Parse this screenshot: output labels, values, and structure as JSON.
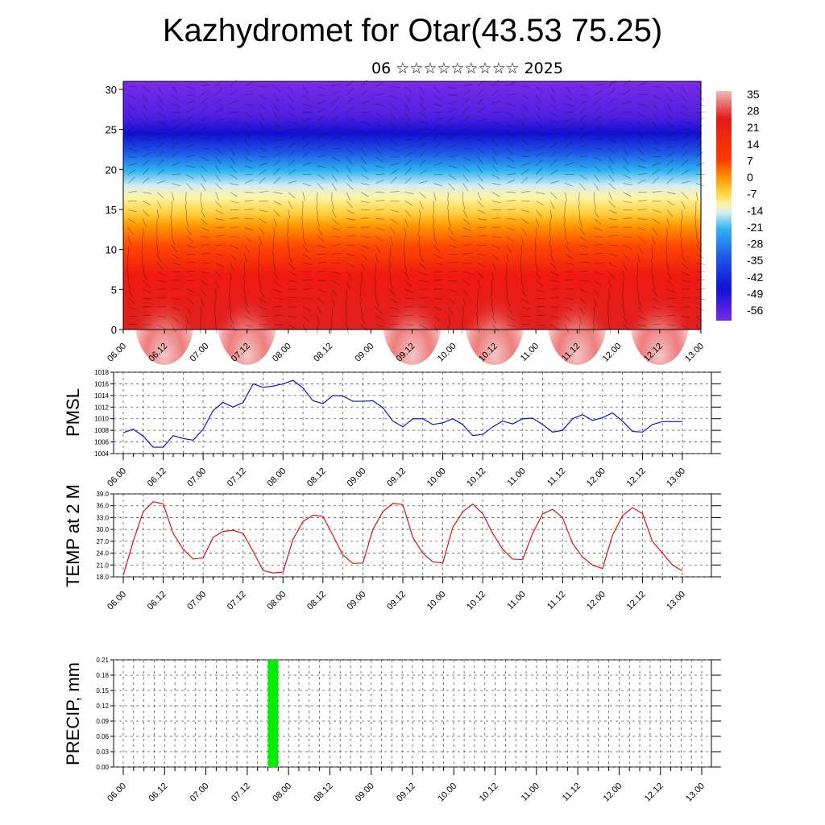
{
  "header": {
    "title": "Kazhydromet for Otar(43.53 75.25)",
    "subtitle": "06 ☆☆☆☆☆☆☆☆☆ 2025"
  },
  "time_axis": {
    "tick_labels": [
      "06.00",
      "06.12",
      "07.00",
      "07.12",
      "08.00",
      "08.12",
      "09.00",
      "09.12",
      "10.00",
      "10.12",
      "11.00",
      "11.12",
      "12.00",
      "12.12",
      "13.00"
    ]
  },
  "chart_data": [
    {
      "type": "heatmap",
      "description_key": "temperature-wind-cross-section",
      "y_ticks": [
        0,
        5,
        10,
        15,
        20,
        25,
        30
      ],
      "ylim": [
        0,
        31
      ],
      "xlim_steps": [
        0,
        14
      ],
      "colorbar": {
        "labels": [
          "35",
          "28",
          "21",
          "14",
          "7",
          "0",
          "-7",
          "-14",
          "-21",
          "-28",
          "-35",
          "-42",
          "-49",
          "-56"
        ],
        "colors": [
          "#f0b8b8",
          "#e21a1a",
          "#ff3a00",
          "#ff9a00",
          "#ffd040",
          "#fff3a0",
          "#d6eef2",
          "#2fb4f0",
          "#1e5ae8",
          "#1010d8",
          "#6020e0",
          "#7a2ae8"
        ]
      }
    },
    {
      "type": "line",
      "ylabel": "PMSL",
      "ylim": [
        1004,
        1018
      ],
      "y_ticks": [
        1004,
        1006,
        1008,
        1010,
        1012,
        1014,
        1016,
        1018
      ],
      "color": "#1010d8",
      "x_step_hours": 3,
      "values": [
        1007.6,
        1008.2,
        1007,
        1005.1,
        1005.1,
        1007.1,
        1006.6,
        1006.3,
        1008.2,
        1011.4,
        1012.8,
        1012,
        1012.8,
        1016,
        1015.4,
        1015.6,
        1016,
        1016.6,
        1015.3,
        1013.1,
        1012.6,
        1014,
        1013.9,
        1013,
        1013,
        1013.1,
        1011.9,
        1009.6,
        1008.6,
        1010,
        1010,
        1009,
        1009.3,
        1010,
        1009,
        1007.1,
        1007.3,
        1008.6,
        1009.6,
        1009.1,
        1010,
        1010.1,
        1009,
        1007.7,
        1008,
        1010,
        1010.7,
        1009.7,
        1010.2,
        1011,
        1009.6,
        1007.8,
        1007.7,
        1009,
        1009.5,
        1009.5,
        1009.5
      ]
    },
    {
      "type": "line",
      "ylabel": "TEMP at 2 M",
      "ylim": [
        18,
        39
      ],
      "y_ticks": [
        "18.0",
        "21.0",
        "24.0",
        "27.0",
        "30.0",
        "33.0",
        "36.0",
        "39.0"
      ],
      "color": "#e01010",
      "x_step_hours": 3,
      "values": [
        18.4,
        27,
        34.5,
        37,
        36.5,
        29,
        25,
        22.5,
        22.8,
        28,
        29.5,
        29.8,
        29,
        24.5,
        19.6,
        19,
        19.2,
        27.5,
        32,
        33.6,
        33.3,
        28.5,
        23.5,
        21.4,
        21.5,
        30,
        34.5,
        36.6,
        36.3,
        28,
        24,
        21.8,
        21.5,
        30.5,
        34.5,
        36.4,
        34,
        29,
        25,
        22.5,
        22.4,
        29,
        33.9,
        35.1,
        33,
        26.5,
        23,
        21,
        20.1,
        28.5,
        33.5,
        35.5,
        34,
        27,
        24,
        21,
        19.5
      ]
    },
    {
      "type": "bar",
      "ylabel": "PRECIP, mm",
      "ylim": [
        0,
        0.21
      ],
      "y_ticks": [
        "0.00",
        "0.03",
        "0.06",
        "0.09",
        "0.12",
        "0.15",
        "0.18",
        "0.21"
      ],
      "color": "#00ee00",
      "bars": [
        {
          "x_hours": 42,
          "width_hours": 3,
          "value": 0.21
        }
      ]
    }
  ]
}
